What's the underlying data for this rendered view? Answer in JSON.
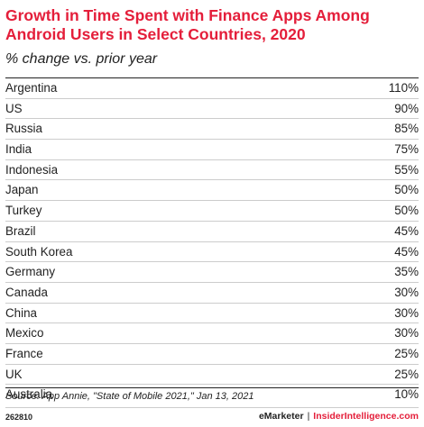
{
  "chart_data": {
    "type": "table",
    "title": "Growth in Time Spent with Finance Apps Among Android Users in Select Countries, 2020",
    "subtitle": "% change vs. prior year",
    "categories": [
      "Argentina",
      "US",
      "Russia",
      "India",
      "Indonesia",
      "Japan",
      "Turkey",
      "Brazil",
      "South Korea",
      "Germany",
      "Canada",
      "China",
      "Mexico",
      "France",
      "UK",
      "Australia"
    ],
    "values": [
      110,
      90,
      85,
      75,
      55,
      50,
      50,
      45,
      45,
      35,
      30,
      30,
      30,
      25,
      25,
      10
    ],
    "value_labels": [
      "110%",
      "90%",
      "85%",
      "75%",
      "55%",
      "50%",
      "50%",
      "45%",
      "45%",
      "35%",
      "30%",
      "30%",
      "30%",
      "25%",
      "25%",
      "10%"
    ],
    "unit": "%"
  },
  "source": "Source: App Annie, \"State of Mobile 2021,\" Jan 13, 2021",
  "chart_id": "262810",
  "brand": {
    "left": "eMarketer",
    "separator": "|",
    "right": "InsiderIntelligence.com"
  },
  "colors": {
    "title": "#e41e3a",
    "brand_accent": "#e41e3a",
    "text": "#222222"
  }
}
